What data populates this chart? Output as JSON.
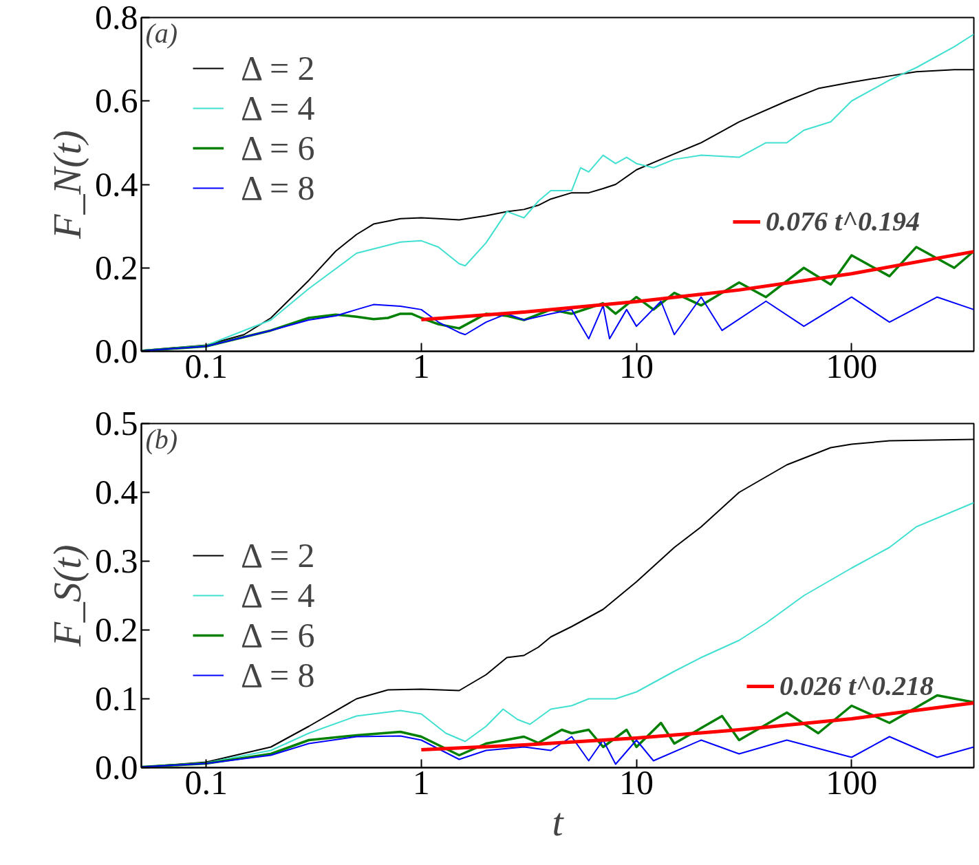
{
  "chart_data": [
    {
      "type": "line",
      "ylabel": "F_N(t)",
      "log": "x",
      "grid": false,
      "legend": "top left",
      "xlim": [
        0.05,
        370
      ],
      "ylim": [
        0,
        0.8
      ],
      "xticks": [
        0.1,
        1,
        10,
        100
      ],
      "yticks": [
        {
          "value": 0,
          "label": "0.0"
        },
        {
          "value": 0.2,
          "label": "0.2"
        },
        {
          "value": 0.4,
          "label": "0.4"
        },
        {
          "value": 0.6,
          "label": "0.6"
        },
        {
          "value": 0.8,
          "label": "0.8"
        }
      ],
      "annotations": [
        "(a)"
      ],
      "series": [
        {
          "name": "Δ = 2",
          "color": "#000000",
          "x": [
            0.05,
            0.1,
            0.15,
            0.2,
            0.3,
            0.4,
            0.5,
            0.6,
            0.8,
            1,
            1.2,
            1.5,
            2,
            2.5,
            3,
            3.5,
            4,
            5,
            6,
            7,
            8,
            10,
            13,
            20,
            30,
            50,
            70,
            100,
            150,
            200,
            300,
            370
          ],
          "values": [
            0.002,
            0.015,
            0.04,
            0.08,
            0.17,
            0.24,
            0.28,
            0.305,
            0.318,
            0.32,
            0.318,
            0.315,
            0.325,
            0.335,
            0.34,
            0.35,
            0.365,
            0.38,
            0.38,
            0.39,
            0.4,
            0.435,
            0.46,
            0.5,
            0.55,
            0.6,
            0.63,
            0.645,
            0.66,
            0.67,
            0.675,
            0.675
          ]
        },
        {
          "name": "Δ = 4",
          "color": "#40e0d0",
          "x": [
            0.05,
            0.1,
            0.2,
            0.3,
            0.5,
            0.8,
            1,
            1.2,
            1.5,
            1.6,
            2,
            2.5,
            3,
            3.5,
            4,
            5,
            5.5,
            6,
            7,
            8,
            9,
            10,
            12,
            15,
            20,
            30,
            40,
            50,
            60,
            80,
            100,
            150,
            200,
            300,
            370
          ],
          "values": [
            0.002,
            0.014,
            0.075,
            0.15,
            0.235,
            0.262,
            0.265,
            0.25,
            0.21,
            0.205,
            0.26,
            0.335,
            0.32,
            0.36,
            0.385,
            0.385,
            0.44,
            0.43,
            0.47,
            0.45,
            0.465,
            0.45,
            0.44,
            0.46,
            0.47,
            0.465,
            0.5,
            0.5,
            0.53,
            0.55,
            0.6,
            0.65,
            0.68,
            0.73,
            0.76
          ]
        },
        {
          "name": "Δ = 6",
          "color": "#008000",
          "x": [
            0.05,
            0.1,
            0.2,
            0.3,
            0.4,
            0.5,
            0.6,
            0.7,
            0.8,
            0.9,
            1,
            1.2,
            1.5,
            2,
            2.5,
            3,
            4,
            5,
            7,
            8,
            10,
            12,
            15,
            20,
            30,
            40,
            60,
            80,
            100,
            150,
            200,
            300,
            370
          ],
          "values": [
            0.001,
            0.012,
            0.05,
            0.08,
            0.088,
            0.083,
            0.077,
            0.08,
            0.09,
            0.09,
            0.08,
            0.065,
            0.055,
            0.09,
            0.085,
            0.075,
            0.1,
            0.09,
            0.115,
            0.09,
            0.13,
            0.1,
            0.14,
            0.11,
            0.165,
            0.13,
            0.2,
            0.16,
            0.23,
            0.18,
            0.25,
            0.2,
            0.24
          ]
        },
        {
          "name": "Δ = 8",
          "color": "#0000ff",
          "x": [
            0.05,
            0.1,
            0.2,
            0.3,
            0.4,
            0.5,
            0.6,
            0.8,
            1,
            1.2,
            1.5,
            1.6,
            2,
            2.5,
            3,
            4,
            5,
            6,
            7,
            7.5,
            9,
            10,
            13,
            15,
            20,
            25,
            40,
            60,
            100,
            150,
            250,
            370
          ],
          "values": [
            0.001,
            0.012,
            0.05,
            0.075,
            0.085,
            0.1,
            0.112,
            0.108,
            0.1,
            0.07,
            0.045,
            0.04,
            0.07,
            0.09,
            0.075,
            0.09,
            0.1,
            0.03,
            0.11,
            0.03,
            0.1,
            0.06,
            0.12,
            0.04,
            0.13,
            0.05,
            0.12,
            0.06,
            0.13,
            0.07,
            0.13,
            0.1
          ]
        },
        {
          "name": "0.076 t^0.194",
          "color": "#ff0000",
          "x": [
            1,
            3,
            10,
            30,
            100,
            370
          ],
          "values": [
            0.076,
            0.094,
            0.119,
            0.147,
            0.186,
            0.239
          ]
        }
      ]
    },
    {
      "type": "line",
      "ylabel": "F_S(t)",
      "xlabel": "t",
      "log": "x",
      "grid": false,
      "legend": "left",
      "xlim": [
        0.05,
        370
      ],
      "ylim": [
        0,
        0.5
      ],
      "xticks": [
        0.1,
        1,
        10,
        100
      ],
      "yticks": [
        {
          "value": 0,
          "label": "0.0"
        },
        {
          "value": 0.1,
          "label": "0.1"
        },
        {
          "value": 0.2,
          "label": "0.2"
        },
        {
          "value": 0.3,
          "label": "0.3"
        },
        {
          "value": 0.4,
          "label": "0.4"
        },
        {
          "value": 0.5,
          "label": "0.5"
        }
      ],
      "annotations": [
        "(b)"
      ],
      "series": [
        {
          "name": "Δ = 2",
          "color": "#000000",
          "x": [
            0.05,
            0.1,
            0.2,
            0.3,
            0.5,
            0.7,
            1,
            1.5,
            2,
            2.5,
            3,
            3.5,
            4,
            5,
            7,
            10,
            15,
            20,
            30,
            50,
            80,
            100,
            150,
            370
          ],
          "values": [
            0.001,
            0.008,
            0.03,
            0.06,
            0.1,
            0.113,
            0.114,
            0.112,
            0.135,
            0.16,
            0.163,
            0.175,
            0.19,
            0.205,
            0.23,
            0.27,
            0.32,
            0.35,
            0.4,
            0.44,
            0.465,
            0.47,
            0.475,
            0.477
          ]
        },
        {
          "name": "Δ = 4",
          "color": "#40e0d0",
          "x": [
            0.05,
            0.1,
            0.2,
            0.3,
            0.5,
            0.8,
            1,
            1.3,
            1.6,
            2,
            2.4,
            2.8,
            3.2,
            4,
            5,
            6,
            8,
            10,
            15,
            20,
            30,
            40,
            60,
            100,
            150,
            200,
            370
          ],
          "values": [
            0.001,
            0.007,
            0.025,
            0.05,
            0.075,
            0.083,
            0.078,
            0.05,
            0.038,
            0.06,
            0.085,
            0.07,
            0.063,
            0.085,
            0.09,
            0.1,
            0.1,
            0.11,
            0.14,
            0.16,
            0.185,
            0.21,
            0.25,
            0.29,
            0.32,
            0.35,
            0.385
          ]
        },
        {
          "name": "Δ = 6",
          "color": "#008000",
          "x": [
            0.05,
            0.1,
            0.2,
            0.3,
            0.5,
            0.8,
            1,
            1.5,
            2,
            3,
            3.5,
            4.5,
            5,
            6,
            7,
            9,
            10,
            13,
            15,
            25,
            30,
            50,
            70,
            100,
            150,
            250,
            370
          ],
          "values": [
            0.001,
            0.006,
            0.02,
            0.04,
            0.047,
            0.052,
            0.045,
            0.018,
            0.035,
            0.045,
            0.036,
            0.055,
            0.05,
            0.055,
            0.03,
            0.055,
            0.03,
            0.065,
            0.035,
            0.075,
            0.04,
            0.08,
            0.05,
            0.09,
            0.065,
            0.105,
            0.095
          ]
        },
        {
          "name": "Δ = 8",
          "color": "#0000ff",
          "x": [
            0.05,
            0.1,
            0.2,
            0.3,
            0.5,
            0.8,
            1,
            1.5,
            2,
            3,
            4,
            5,
            6,
            7,
            8,
            10,
            12,
            20,
            30,
            50,
            100,
            150,
            250,
            370
          ],
          "values": [
            0.001,
            0.006,
            0.018,
            0.035,
            0.045,
            0.046,
            0.04,
            0.012,
            0.025,
            0.03,
            0.025,
            0.045,
            0.01,
            0.04,
            0.005,
            0.04,
            0.01,
            0.04,
            0.02,
            0.04,
            0.015,
            0.045,
            0.015,
            0.03
          ]
        },
        {
          "name": "0.026 t^0.218",
          "color": "#ff0000",
          "x": [
            1,
            3,
            10,
            30,
            100,
            370
          ],
          "values": [
            0.026,
            0.033,
            0.043,
            0.055,
            0.071,
            0.094
          ]
        }
      ]
    }
  ]
}
